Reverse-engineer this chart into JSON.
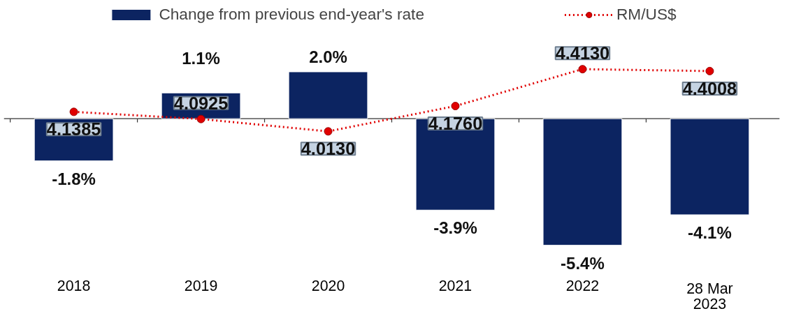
{
  "chart_data": {
    "type": "bar",
    "categories": [
      "2018",
      "2019",
      "2020",
      "2021",
      "2022",
      "28 Mar\n2023"
    ],
    "series": [
      {
        "name": "Change from previous end-year's rate",
        "color": "#0c2461",
        "values": [
          -1.8,
          1.1,
          2.0,
          -3.9,
          -5.4,
          -4.1
        ],
        "value_labels": [
          "-1.8%",
          "1.1%",
          "2.0%",
          "-3.9%",
          "-5.4%",
          "-4.1%"
        ]
      },
      {
        "name": "RM/US$",
        "type": "line",
        "axis": "y2",
        "color": "#e00000",
        "marker": "circle",
        "line_style": "dotted",
        "values": [
          4.1385,
          4.0925,
          4.013,
          4.176,
          4.413,
          4.4008
        ],
        "value_labels": [
          "4.1385",
          "4.0925",
          "4.0130",
          "4.1760",
          "4.4130",
          "4.4008"
        ]
      }
    ],
    "tick_labels": "x",
    "legend": "top"
  }
}
